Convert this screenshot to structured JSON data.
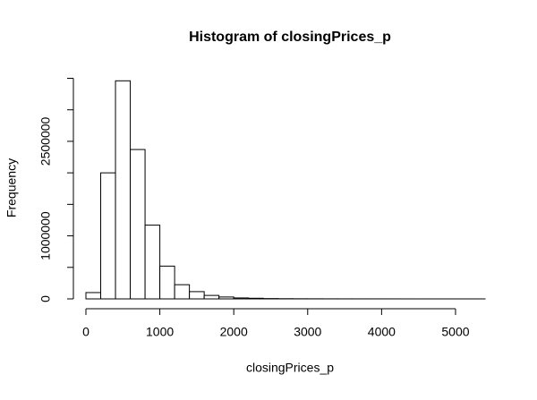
{
  "chart_data": {
    "type": "histogram",
    "title": "Histogram of closingPrices_p",
    "x_label": "closingPrices_p",
    "y_label": "Frequency",
    "bins": [
      0,
      200,
      400,
      600,
      800,
      1000,
      1200,
      1400,
      1600,
      1800,
      2000,
      2200,
      2400,
      2600,
      2800,
      3000,
      3200,
      3400,
      3600,
      3800,
      4000,
      4200,
      4400,
      4600,
      4800,
      5000,
      5200,
      5400
    ],
    "values": [
      100000,
      2000000,
      3460000,
      2370000,
      1170000,
      520000,
      225000,
      115000,
      55000,
      30000,
      15000,
      10000,
      5000,
      3000,
      2000,
      1500,
      1000,
      800,
      600,
      500,
      400,
      300,
      200,
      150,
      100,
      80,
      50
    ],
    "color": "#ffffff",
    "xlim": [
      0,
      5400
    ],
    "xticks": [
      0,
      1000,
      2000,
      3000,
      4000,
      5000
    ],
    "ylim": [
      0,
      3500000
    ],
    "yticks": [
      0,
      1000000,
      2500000
    ],
    "yminor_ticks": [
      500000,
      1500000,
      2000000,
      3000000,
      3500000
    ]
  }
}
